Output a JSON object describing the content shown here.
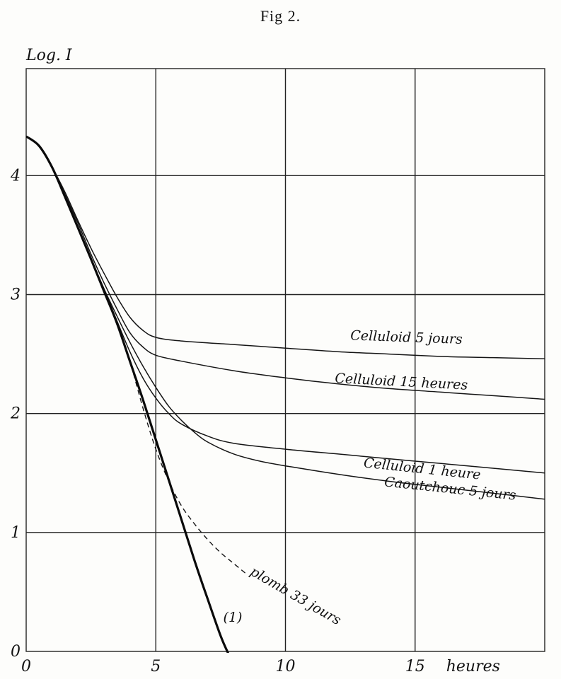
{
  "figure": {
    "title": "Fig 2."
  },
  "chart_data": {
    "type": "line",
    "title": "Fig 2.",
    "ylabel": "Log. I",
    "xlabel": "heures",
    "xlim": [
      0,
      20
    ],
    "ylim": [
      0,
      4.9
    ],
    "xticks": [
      {
        "value": 0,
        "label": "0"
      },
      {
        "value": 5,
        "label": "5"
      },
      {
        "value": 10,
        "label": "10"
      },
      {
        "value": 15,
        "label": "15"
      }
    ],
    "yticks": [
      {
        "value": 0,
        "label": "0"
      },
      {
        "value": 1,
        "label": "1"
      },
      {
        "value": 2,
        "label": "2"
      },
      {
        "value": 3,
        "label": "3"
      },
      {
        "value": 4,
        "label": "4"
      }
    ],
    "grid": true,
    "series": [
      {
        "name": "(1)",
        "style": "thick",
        "points": [
          [
            0,
            4.33
          ],
          [
            0.5,
            4.25
          ],
          [
            1,
            4.07
          ],
          [
            1.5,
            3.82
          ],
          [
            2,
            3.56
          ],
          [
            2.5,
            3.3
          ],
          [
            3,
            3.03
          ],
          [
            3.5,
            2.76
          ],
          [
            4,
            2.44
          ],
          [
            4.5,
            2.12
          ],
          [
            5,
            1.78
          ],
          [
            5.5,
            1.44
          ],
          [
            6,
            1.1
          ],
          [
            6.5,
            0.76
          ],
          [
            7,
            0.44
          ],
          [
            7.5,
            0.13
          ],
          [
            7.8,
            -0.02
          ]
        ]
      },
      {
        "name": "plomb 33 jours",
        "style": "dashed",
        "points": [
          [
            0,
            4.33
          ],
          [
            0.5,
            4.25
          ],
          [
            1,
            4.07
          ],
          [
            1.5,
            3.82
          ],
          [
            2,
            3.56
          ],
          [
            2.5,
            3.3
          ],
          [
            3,
            3.03
          ],
          [
            3.5,
            2.76
          ],
          [
            4,
            2.44
          ],
          [
            4.5,
            2.05
          ],
          [
            5,
            1.7
          ],
          [
            5.5,
            1.43
          ],
          [
            6,
            1.22
          ],
          [
            6.5,
            1.07
          ],
          [
            7,
            0.94
          ],
          [
            7.5,
            0.83
          ],
          [
            8,
            0.74
          ],
          [
            8.5,
            0.65
          ]
        ]
      },
      {
        "name": "Celluloid 5 jours",
        "style": "solid",
        "points": [
          [
            0,
            4.33
          ],
          [
            0.5,
            4.25
          ],
          [
            1,
            4.07
          ],
          [
            1.5,
            3.86
          ],
          [
            2,
            3.62
          ],
          [
            2.5,
            3.39
          ],
          [
            3,
            3.18
          ],
          [
            3.5,
            2.98
          ],
          [
            4,
            2.81
          ],
          [
            4.5,
            2.7
          ],
          [
            5,
            2.64
          ],
          [
            6,
            2.61
          ],
          [
            8,
            2.58
          ],
          [
            10,
            2.55
          ],
          [
            12,
            2.52
          ],
          [
            14,
            2.5
          ],
          [
            16,
            2.48
          ],
          [
            18,
            2.47
          ],
          [
            20,
            2.46
          ]
        ]
      },
      {
        "name": "Celluloid 15 heures",
        "style": "solid",
        "points": [
          [
            0,
            4.33
          ],
          [
            0.5,
            4.25
          ],
          [
            1,
            4.07
          ],
          [
            1.5,
            3.84
          ],
          [
            2,
            3.6
          ],
          [
            2.5,
            3.34
          ],
          [
            3,
            3.1
          ],
          [
            3.5,
            2.88
          ],
          [
            4,
            2.68
          ],
          [
            4.5,
            2.56
          ],
          [
            5,
            2.49
          ],
          [
            6,
            2.44
          ],
          [
            8,
            2.36
          ],
          [
            10,
            2.3
          ],
          [
            12,
            2.25
          ],
          [
            14,
            2.21
          ],
          [
            16,
            2.18
          ],
          [
            18,
            2.15
          ],
          [
            20,
            2.12
          ]
        ]
      },
      {
        "name": "Celluloid 1 heure",
        "style": "solid",
        "points": [
          [
            0,
            4.33
          ],
          [
            0.5,
            4.25
          ],
          [
            1,
            4.07
          ],
          [
            1.5,
            3.82
          ],
          [
            2,
            3.56
          ],
          [
            2.5,
            3.3
          ],
          [
            3,
            3.05
          ],
          [
            3.5,
            2.78
          ],
          [
            4,
            2.52
          ],
          [
            4.5,
            2.3
          ],
          [
            5,
            2.13
          ],
          [
            5.5,
            2.0
          ],
          [
            6,
            1.91
          ],
          [
            7,
            1.81
          ],
          [
            8,
            1.75
          ],
          [
            10,
            1.7
          ],
          [
            12,
            1.66
          ],
          [
            14,
            1.62
          ],
          [
            16,
            1.58
          ],
          [
            18,
            1.54
          ],
          [
            20,
            1.5
          ]
        ]
      },
      {
        "name": "Caoutchouc 5 jours",
        "style": "solid",
        "points": [
          [
            0,
            4.33
          ],
          [
            0.5,
            4.25
          ],
          [
            1,
            4.07
          ],
          [
            1.5,
            3.82
          ],
          [
            2,
            3.56
          ],
          [
            2.5,
            3.3
          ],
          [
            3,
            3.05
          ],
          [
            3.5,
            2.82
          ],
          [
            4,
            2.6
          ],
          [
            4.5,
            2.4
          ],
          [
            5,
            2.22
          ],
          [
            5.5,
            2.06
          ],
          [
            6,
            1.94
          ],
          [
            6.5,
            1.84
          ],
          [
            7,
            1.76
          ],
          [
            8,
            1.66
          ],
          [
            9,
            1.6
          ],
          [
            10,
            1.56
          ],
          [
            12,
            1.49
          ],
          [
            14,
            1.43
          ],
          [
            16,
            1.38
          ],
          [
            18,
            1.33
          ],
          [
            20,
            1.28
          ]
        ]
      }
    ],
    "labels": [
      {
        "text": "Celluloid 5 jours",
        "series": "Celluloid 5 jours",
        "x": 12.5,
        "y": 2.62,
        "rotate": 2
      },
      {
        "text": "Celluloid 15 heures",
        "series": "Celluloid 15 heures",
        "x": 11.9,
        "y": 2.26,
        "rotate": 3
      },
      {
        "text": "Celluloid 1 heure",
        "series": "Celluloid 1 heure",
        "x": 13.0,
        "y": 1.55,
        "rotate": 6
      },
      {
        "text": "Caoutchouc 5 jours",
        "series": "Caoutchouc 5 jours",
        "x": 13.8,
        "y": 1.39,
        "rotate": 6
      },
      {
        "text": "plomb 33 jours",
        "series": "plomb 33 jours",
        "x": 8.6,
        "y": 0.65,
        "rotate": 30
      },
      {
        "text": "(1)",
        "series": "(1)",
        "x": 7.6,
        "y": 0.25,
        "rotate": 0
      }
    ]
  }
}
